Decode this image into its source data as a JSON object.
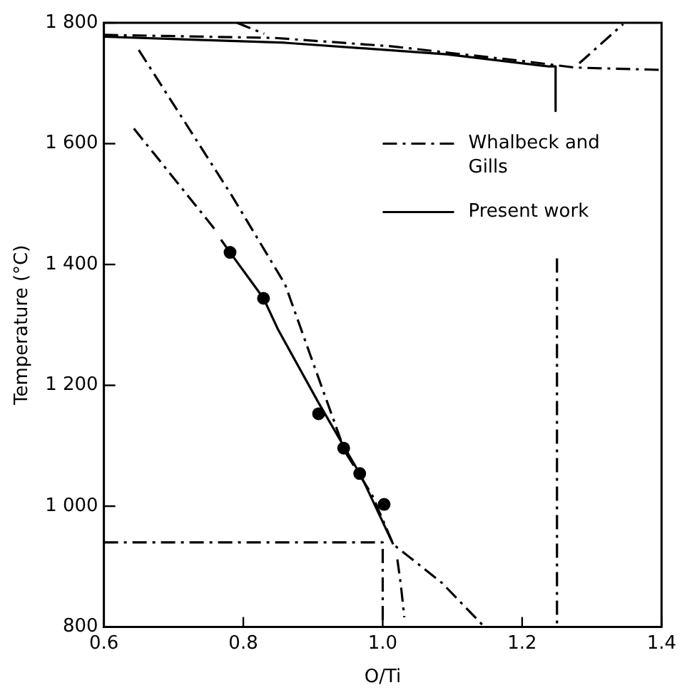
{
  "chart_data": {
    "type": "line",
    "xlabel": "O/Ti",
    "ylabel": "Temperature (°C)",
    "xlim": [
      0.6,
      1.4
    ],
    "ylim": [
      800,
      1800
    ],
    "xticks": [
      {
        "value": 0.6,
        "label": "0.6"
      },
      {
        "value": 0.8,
        "label": "0.8"
      },
      {
        "value": 1.0,
        "label": "1.0"
      },
      {
        "value": 1.2,
        "label": "1.2"
      },
      {
        "value": 1.4,
        "label": "1.4"
      }
    ],
    "yticks": [
      {
        "value": 800,
        "label": "800"
      },
      {
        "value": 1000,
        "label": "1 000"
      },
      {
        "value": 1200,
        "label": "1 200"
      },
      {
        "value": 1400,
        "label": "1 400"
      },
      {
        "value": 1600,
        "label": "1 600"
      },
      {
        "value": 1800,
        "label": "1 800"
      }
    ],
    "grid": false,
    "legend": "top right",
    "series": [
      {
        "name": "Whalbeck and Gills",
        "color": "#000000",
        "line_style": "dashed",
        "x": [
          0.6,
          0.845,
          1.014,
          1.206,
          1.275,
          1.4
        ],
        "values": [
          1780,
          1775,
          1761,
          1736,
          1726,
          1722
        ]
      },
      {
        "color": "#000000",
        "line_style": "dashed",
        "x": [
          1.282,
          1.345
        ],
        "values": [
          1733,
          1798
        ]
      },
      {
        "color": "#000000",
        "line_style": "dashed",
        "x": [
          0.791,
          0.83
        ],
        "values": [
          1800,
          1782
        ]
      },
      {
        "color": "#000000",
        "line_style": "dashed",
        "x": [
          0.643,
          0.76
        ],
        "values": [
          1625,
          1457
        ]
      },
      {
        "color": "#000000",
        "line_style": "dashed",
        "x": [
          0.65,
          0.706,
          0.783,
          0.86,
          0.898,
          0.946,
          0.985,
          1.015,
          1.085,
          1.146
        ],
        "values": [
          1755,
          1654,
          1515,
          1367,
          1244,
          1090,
          1018,
          937,
          873,
          800
        ]
      },
      {
        "color": "#000000",
        "line_style": "dashed",
        "x": [
          0.6,
          1.0,
          1.0
        ],
        "values": [
          940,
          940,
          800
        ]
      },
      {
        "color": "#000000",
        "line_style": "dashed",
        "x": [
          1.021,
          1.026,
          1.031
        ],
        "values": [
          912,
          870,
          816
        ]
      },
      {
        "color": "#000000",
        "line_style": "dashed",
        "x": [
          1.25,
          1.25
        ],
        "values": [
          1410,
          800
        ]
      },
      {
        "name": "Present work",
        "color": "#000000",
        "line_style": "solid",
        "x": [
          0.6,
          0.86,
          1.091,
          1.237,
          1.248,
          1.248
        ],
        "values": [
          1777,
          1767,
          1748,
          1728,
          1728,
          1654
        ]
      },
      {
        "color": "#000000",
        "line_style": "solid",
        "x": [
          0.768,
          0.781,
          0.829,
          0.85,
          0.908,
          0.969,
          1.015
        ],
        "values": [
          1441,
          1420,
          1344,
          1292,
          1171,
          1050,
          937
        ]
      },
      {
        "type": "scatter",
        "color": "#000000",
        "marker": "circle",
        "x": [
          0.781,
          0.829,
          0.908,
          0.944,
          0.967,
          1.002
        ],
        "values": [
          1420,
          1344,
          1153,
          1096,
          1054,
          1003
        ]
      }
    ]
  }
}
